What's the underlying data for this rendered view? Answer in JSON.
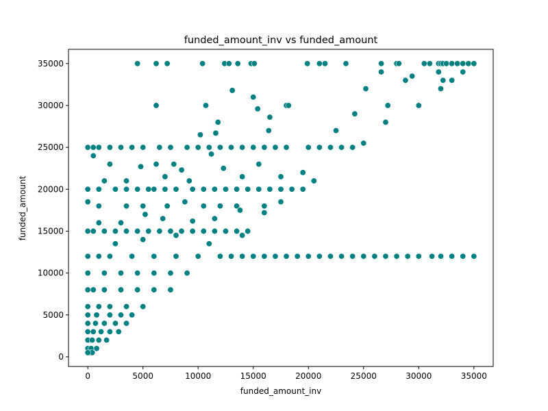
{
  "chart_data": {
    "type": "scatter",
    "title": "funded_amount_inv vs funded_amount",
    "xlabel": "funded_amount_inv",
    "ylabel": "funded_amount",
    "xlim": [
      -1750,
      36750
    ],
    "ylim": [
      -1150,
      36700
    ],
    "x_ticks": [
      0,
      5000,
      10000,
      15000,
      20000,
      25000,
      30000,
      35000
    ],
    "y_ticks": [
      0,
      5000,
      10000,
      15000,
      20000,
      25000,
      30000,
      35000
    ],
    "grid": false,
    "legend": "none",
    "marker_color": "#008080",
    "marker_edge_color": "#ffffff",
    "series": [
      {
        "values_note": "representative points",
        "points": [
          [
            4500,
            35000
          ],
          [
            6200,
            35000
          ],
          [
            7200,
            35000
          ],
          [
            10400,
            35000
          ],
          [
            12400,
            35000
          ],
          [
            12800,
            35000
          ],
          [
            13600,
            35000
          ],
          [
            14800,
            35000
          ],
          [
            15100,
            35000
          ],
          [
            19900,
            35000
          ],
          [
            21000,
            35000
          ],
          [
            21500,
            35000
          ],
          [
            23400,
            35000
          ],
          [
            26600,
            35000
          ],
          [
            28000,
            35000
          ],
          [
            28200,
            35000
          ],
          [
            30500,
            35000
          ],
          [
            31000,
            35000
          ],
          [
            31800,
            35000
          ],
          [
            32000,
            35000
          ],
          [
            32200,
            35000
          ],
          [
            32500,
            35000
          ],
          [
            33000,
            35000
          ],
          [
            33500,
            35000
          ],
          [
            34000,
            35000
          ],
          [
            34500,
            35000
          ],
          [
            35000,
            35000
          ],
          [
            6200,
            30000
          ],
          [
            10700,
            30000
          ],
          [
            18000,
            30000
          ],
          [
            18200,
            30000
          ],
          [
            25200,
            32000
          ],
          [
            26600,
            34000
          ],
          [
            13100,
            31800
          ],
          [
            15000,
            31000
          ],
          [
            15400,
            29600
          ],
          [
            16500,
            28600
          ],
          [
            11800,
            28000
          ],
          [
            11600,
            26700
          ],
          [
            10200,
            26500
          ],
          [
            16400,
            27000
          ],
          [
            22500,
            27000
          ],
          [
            24200,
            29000
          ],
          [
            27200,
            30000
          ],
          [
            28800,
            33000
          ],
          [
            29400,
            33500
          ],
          [
            31800,
            34000
          ],
          [
            32200,
            33000
          ],
          [
            30000,
            30000
          ],
          [
            32000,
            32000
          ],
          [
            33000,
            33000
          ],
          [
            34000,
            34000
          ],
          [
            27000,
            28000
          ],
          [
            25000,
            25500
          ],
          [
            0,
            25000
          ],
          [
            500,
            25000
          ],
          [
            1000,
            25000
          ],
          [
            2000,
            25000
          ],
          [
            3000,
            25000
          ],
          [
            4000,
            25000
          ],
          [
            5000,
            25000
          ],
          [
            6500,
            25000
          ],
          [
            7500,
            25000
          ],
          [
            9000,
            25000
          ],
          [
            10000,
            25000
          ],
          [
            11000,
            25000
          ],
          [
            12000,
            25000
          ],
          [
            13000,
            25000
          ],
          [
            14000,
            25000
          ],
          [
            15000,
            25000
          ],
          [
            16000,
            25000
          ],
          [
            17000,
            25000
          ],
          [
            18000,
            25000
          ],
          [
            20000,
            25000
          ],
          [
            21000,
            25000
          ],
          [
            22000,
            25000
          ],
          [
            23000,
            25000
          ],
          [
            24000,
            25000
          ],
          [
            500,
            24000
          ],
          [
            2000,
            23000
          ],
          [
            4800,
            22700
          ],
          [
            6200,
            23000
          ],
          [
            7800,
            23000
          ],
          [
            8500,
            22300
          ],
          [
            11200,
            24200
          ],
          [
            12300,
            22500
          ],
          [
            15500,
            23000
          ],
          [
            0,
            20000
          ],
          [
            1000,
            20000
          ],
          [
            2500,
            20000
          ],
          [
            3500,
            20000
          ],
          [
            4500,
            20000
          ],
          [
            5500,
            20000
          ],
          [
            6000,
            20000
          ],
          [
            7000,
            20000
          ],
          [
            8000,
            20000
          ],
          [
            9500,
            20000
          ],
          [
            10500,
            20000
          ],
          [
            11500,
            20000
          ],
          [
            12500,
            20000
          ],
          [
            13500,
            20000
          ],
          [
            14500,
            20000
          ],
          [
            15500,
            20000
          ],
          [
            16500,
            20000
          ],
          [
            17500,
            20000
          ],
          [
            18500,
            20000
          ],
          [
            19500,
            20000
          ],
          [
            1500,
            21000
          ],
          [
            3500,
            21000
          ],
          [
            7000,
            21500
          ],
          [
            9200,
            21000
          ],
          [
            14000,
            21500
          ],
          [
            17500,
            21500
          ],
          [
            19500,
            22000
          ],
          [
            20500,
            21000
          ],
          [
            0,
            18500
          ],
          [
            1000,
            18000
          ],
          [
            3500,
            18000
          ],
          [
            5000,
            18000
          ],
          [
            7200,
            18000
          ],
          [
            8800,
            18500
          ],
          [
            10500,
            18000
          ],
          [
            12000,
            18000
          ],
          [
            13500,
            18000
          ],
          [
            16000,
            18000
          ],
          [
            17500,
            18500
          ],
          [
            0,
            15000
          ],
          [
            500,
            15000
          ],
          [
            1500,
            15000
          ],
          [
            2500,
            15000
          ],
          [
            3500,
            15000
          ],
          [
            4500,
            15000
          ],
          [
            5500,
            15000
          ],
          [
            6500,
            15000
          ],
          [
            7500,
            15000
          ],
          [
            8500,
            15000
          ],
          [
            9500,
            15000
          ],
          [
            10500,
            15000
          ],
          [
            11500,
            15000
          ],
          [
            12500,
            15000
          ],
          [
            13500,
            15000
          ],
          [
            14500,
            15000
          ],
          [
            1000,
            16000
          ],
          [
            3000,
            16000
          ],
          [
            5200,
            17000
          ],
          [
            6800,
            16500
          ],
          [
            9500,
            16200
          ],
          [
            11500,
            16500
          ],
          [
            13800,
            17500
          ],
          [
            16000,
            17200
          ],
          [
            0,
            12000
          ],
          [
            1000,
            12000
          ],
          [
            2000,
            12000
          ],
          [
            4000,
            12000
          ],
          [
            6000,
            12000
          ],
          [
            8000,
            12000
          ],
          [
            10000,
            12000
          ],
          [
            12000,
            12000
          ],
          [
            13000,
            12000
          ],
          [
            14000,
            12000
          ],
          [
            15000,
            12000
          ],
          [
            16000,
            12000
          ],
          [
            17000,
            12000
          ],
          [
            18000,
            12000
          ],
          [
            19000,
            12000
          ],
          [
            20000,
            12000
          ],
          [
            21000,
            12000
          ],
          [
            22000,
            12000
          ],
          [
            23000,
            12000
          ],
          [
            24000,
            12000
          ],
          [
            25000,
            12000
          ],
          [
            26000,
            12000
          ],
          [
            27000,
            12000
          ],
          [
            28000,
            12000
          ],
          [
            29000,
            12000
          ],
          [
            30000,
            12000
          ],
          [
            31200,
            12000
          ],
          [
            32000,
            12000
          ],
          [
            33000,
            12000
          ],
          [
            34000,
            12000
          ],
          [
            35000,
            12000
          ],
          [
            0,
            10000
          ],
          [
            1500,
            10000
          ],
          [
            3000,
            10000
          ],
          [
            4500,
            10000
          ],
          [
            6000,
            10000
          ],
          [
            7500,
            10000
          ],
          [
            9000,
            10000
          ],
          [
            2500,
            13500
          ],
          [
            5000,
            14000
          ],
          [
            8000,
            14500
          ],
          [
            11000,
            13500
          ],
          [
            14000,
            14500
          ],
          [
            0,
            8000
          ],
          [
            500,
            8000
          ],
          [
            1500,
            8000
          ],
          [
            3000,
            8000
          ],
          [
            4500,
            8000
          ],
          [
            6000,
            8000
          ],
          [
            7500,
            8000
          ],
          [
            0,
            6000
          ],
          [
            1000,
            6000
          ],
          [
            2000,
            6000
          ],
          [
            3500,
            6000
          ],
          [
            5000,
            6000
          ],
          [
            0,
            5000
          ],
          [
            800,
            5000
          ],
          [
            2000,
            5000
          ],
          [
            3000,
            5000
          ],
          [
            4000,
            5000
          ],
          [
            0,
            4000
          ],
          [
            700,
            4000
          ],
          [
            1500,
            4000
          ],
          [
            2500,
            4000
          ],
          [
            3500,
            4000
          ],
          [
            0,
            3000
          ],
          [
            500,
            3000
          ],
          [
            1200,
            3000
          ],
          [
            2000,
            3000
          ],
          [
            2800,
            3000
          ],
          [
            0,
            2000
          ],
          [
            400,
            2000
          ],
          [
            1000,
            2000
          ],
          [
            1700,
            2000
          ],
          [
            0,
            1000
          ],
          [
            300,
            1000
          ],
          [
            800,
            1000
          ],
          [
            200,
            500
          ],
          [
            400,
            500
          ],
          [
            0,
            500
          ]
        ]
      }
    ]
  }
}
